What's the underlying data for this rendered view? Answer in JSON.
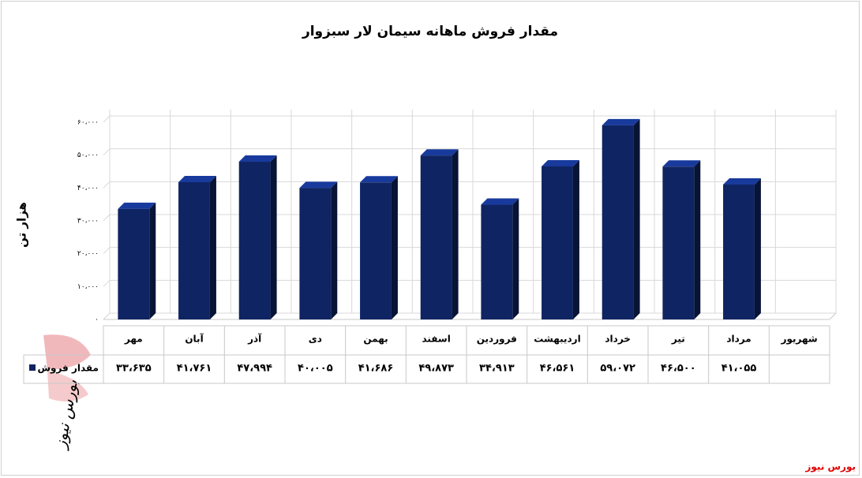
{
  "chart_data": {
    "type": "bar",
    "title": "مقدار فروش ماهانه سیمان لار سبزوار",
    "y_label": "هزار تن",
    "categories": [
      "مهر",
      "آبان",
      "آذر",
      "دی",
      "بهمن",
      "اسفند",
      "فروردین",
      "اردیبهشت",
      "خرداد",
      "تیر",
      "مرداد",
      "شهریور"
    ],
    "series": [
      {
        "name": "مقدار فروش",
        "color": "#0f2462",
        "values": [
          33635,
          41761,
          47994,
          40005,
          41686,
          49873,
          34913,
          46561,
          59072,
          46500,
          41055,
          null
        ],
        "value_labels": [
          "۳۳،۶۳۵",
          "۴۱،۷۶۱",
          "۴۷،۹۹۴",
          "۴۰،۰۰۵",
          "۴۱،۶۸۶",
          "۴۹،۸۷۳",
          "۳۴،۹۱۳",
          "۴۶،۵۶۱",
          "۵۹،۰۷۲",
          "۴۶،۵۰۰",
          "۴۱،۰۵۵",
          null
        ]
      }
    ],
    "ylim": [
      0,
      60000
    ],
    "yticks": [
      {
        "value": 0,
        "label": "۰"
      },
      {
        "value": 10000,
        "label": "۱۰،۰۰۰"
      },
      {
        "value": 20000,
        "label": "۲۰،۰۰۰"
      },
      {
        "value": 30000,
        "label": "۳۰،۰۰۰"
      },
      {
        "value": 40000,
        "label": "۴۰،۰۰۰"
      },
      {
        "value": 50000,
        "label": "۵۰،۰۰۰"
      },
      {
        "value": 60000,
        "label": "۶۰،۰۰۰"
      }
    ],
    "grid": true,
    "watermark": "بورس نیوز",
    "source": "بورس نیوز"
  }
}
